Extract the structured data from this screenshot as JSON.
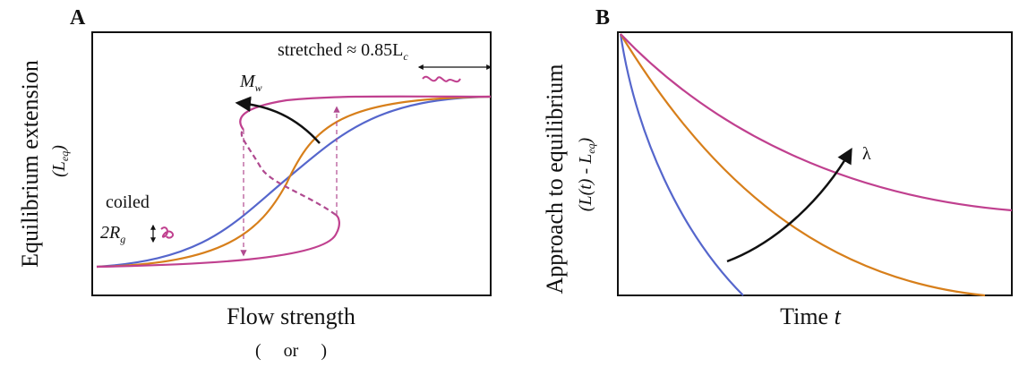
{
  "panel_a": {
    "label": "A",
    "y_label": "Equilibrium extension",
    "y_unit": {
      "open": "(L",
      "sub": "eq",
      "close": ")"
    },
    "x_label": "Flow strength",
    "x_note": "(     or     )",
    "stretched": {
      "text": "stretched ≈ 0.85L",
      "sub": "c"
    },
    "mw": {
      "text": "M",
      "sub": "w"
    },
    "coiled": "coiled",
    "rg": {
      "text": "2R",
      "sub": "g"
    }
  },
  "panel_b": {
    "label": "B",
    "y_label": "Approach to equilibrium",
    "y_unit": {
      "open": "(L(t) - L",
      "sub": "eq",
      "close": ")"
    },
    "x_label": {
      "text": "Time ",
      "var": "t"
    },
    "lambda": "λ"
  }
}
